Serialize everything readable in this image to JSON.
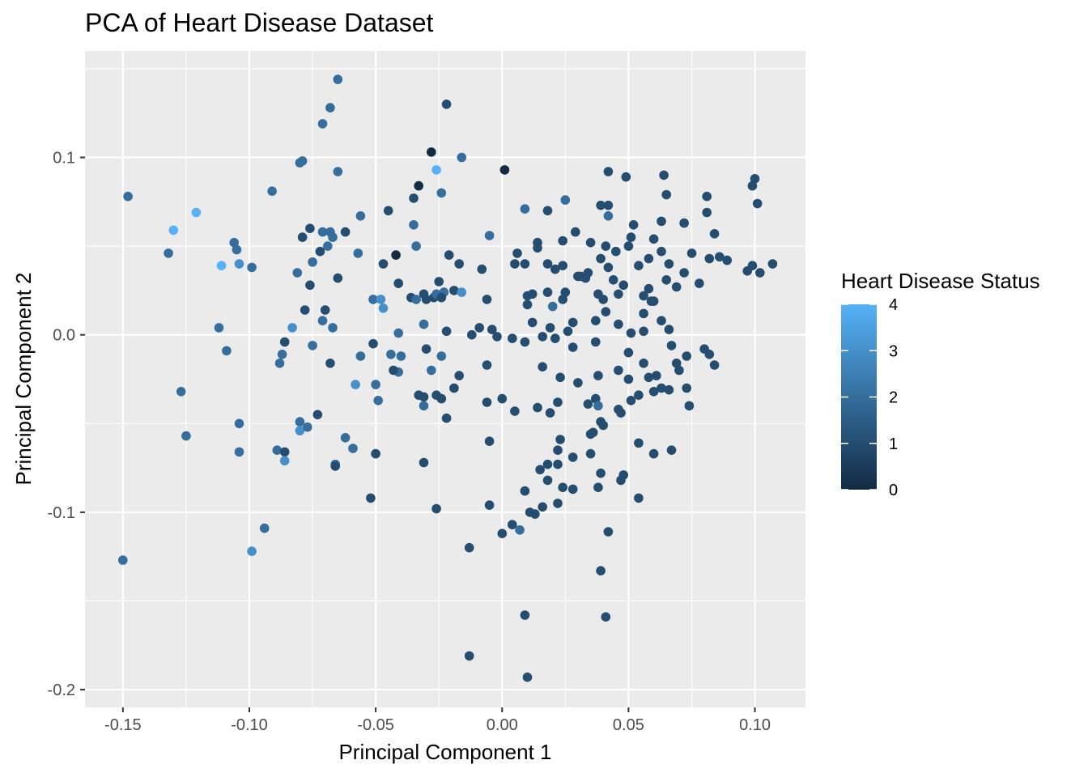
{
  "chart_data": {
    "type": "scatter",
    "title": "PCA of Heart Disease Dataset",
    "xlabel": "Principal Component 1",
    "ylabel": "Principal Component 2",
    "xlim": [
      -0.165,
      0.12
    ],
    "ylim": [
      -0.21,
      0.16
    ],
    "x_ticks": [
      -0.15,
      -0.1,
      -0.05,
      0.0,
      0.05,
      0.1
    ],
    "x_tick_labels": [
      "-0.15",
      "-0.10",
      "-0.05",
      "0.00",
      "0.05",
      "0.10"
    ],
    "y_ticks": [
      -0.2,
      -0.1,
      0.0,
      0.1
    ],
    "y_tick_labels": [
      "-0.2",
      "-0.1",
      "0.0",
      "0.1"
    ],
    "grid": true,
    "legend": {
      "title": "Heart Disease Status",
      "position": "right",
      "min": 0,
      "max": 4,
      "ticks": [
        "0",
        "1",
        "2",
        "3",
        "4"
      ],
      "color_low": "#132B43",
      "color_high": "#56B1F7"
    },
    "colors": {
      "panel": "#EBEBEB",
      "grid": "#FFFFFF"
    },
    "points": [
      [
        -0.065,
        0.144,
        2
      ],
      [
        -0.022,
        0.13,
        1
      ],
      [
        -0.068,
        0.128,
        2
      ],
      [
        -0.071,
        0.119,
        2
      ],
      [
        -0.028,
        0.103,
        0
      ],
      [
        -0.016,
        0.1,
        2
      ],
      [
        -0.079,
        0.098,
        2
      ],
      [
        -0.08,
        0.097,
        2
      ],
      [
        -0.065,
        0.092,
        2
      ],
      [
        -0.026,
        0.093,
        4
      ],
      [
        0.001,
        0.093,
        0
      ],
      [
        -0.148,
        0.078,
        2
      ],
      [
        -0.091,
        0.081,
        2
      ],
      [
        -0.024,
        0.08,
        2
      ],
      [
        -0.033,
        0.084,
        0
      ],
      [
        -0.121,
        0.069,
        4
      ],
      [
        -0.13,
        0.059,
        4
      ],
      [
        -0.132,
        0.046,
        2
      ],
      [
        -0.106,
        0.052,
        2
      ],
      [
        -0.105,
        0.048,
        2
      ],
      [
        -0.111,
        0.039,
        4
      ],
      [
        -0.104,
        0.04,
        3
      ],
      [
        -0.099,
        0.038,
        2
      ],
      [
        -0.056,
        0.067,
        2
      ],
      [
        -0.045,
        0.07,
        1
      ],
      [
        -0.035,
        0.077,
        1
      ],
      [
        -0.035,
        0.062,
        2
      ],
      [
        -0.076,
        0.06,
        1
      ],
      [
        -0.079,
        0.055,
        1
      ],
      [
        -0.068,
        0.058,
        2
      ],
      [
        -0.067,
        0.055,
        2
      ],
      [
        -0.069,
        0.05,
        2
      ],
      [
        -0.071,
        0.058,
        2
      ],
      [
        -0.062,
        0.058,
        1
      ],
      [
        -0.072,
        0.047,
        1
      ],
      [
        -0.075,
        0.041,
        2
      ],
      [
        -0.081,
        0.035,
        2
      ],
      [
        -0.065,
        0.032,
        1
      ],
      [
        -0.057,
        0.046,
        2
      ],
      [
        -0.034,
        0.05,
        2
      ],
      [
        -0.042,
        0.045,
        0
      ],
      [
        -0.047,
        0.04,
        1
      ],
      [
        -0.041,
        0.029,
        1
      ],
      [
        -0.021,
        0.045,
        1
      ],
      [
        -0.025,
        0.03,
        1
      ],
      [
        -0.076,
        0.028,
        1
      ],
      [
        -0.078,
        0.014,
        1
      ],
      [
        -0.07,
        0.014,
        1
      ],
      [
        -0.071,
        0.008,
        2
      ],
      [
        -0.083,
        0.004,
        3
      ],
      [
        -0.067,
        0.004,
        2
      ],
      [
        -0.112,
        0.004,
        2
      ],
      [
        -0.109,
        -0.009,
        2
      ],
      [
        -0.086,
        -0.004,
        1
      ],
      [
        -0.087,
        -0.011,
        2
      ],
      [
        -0.075,
        -0.006,
        2
      ],
      [
        -0.088,
        -0.016,
        2
      ],
      [
        -0.068,
        -0.016,
        1
      ],
      [
        -0.051,
        0.02,
        2
      ],
      [
        -0.048,
        0.02,
        3
      ],
      [
        -0.047,
        0.015,
        3
      ],
      [
        -0.051,
        -0.005,
        1
      ],
      [
        -0.056,
        -0.012,
        2
      ],
      [
        -0.044,
        -0.011,
        2
      ],
      [
        -0.04,
        -0.012,
        2
      ],
      [
        -0.041,
        0.001,
        2
      ],
      [
        -0.036,
        0.021,
        1
      ],
      [
        -0.031,
        0.023,
        1
      ],
      [
        -0.034,
        0.02,
        2
      ],
      [
        -0.03,
        0.02,
        1
      ],
      [
        -0.031,
        0.006,
        2
      ],
      [
        -0.027,
        0.021,
        1
      ],
      [
        -0.026,
        0.023,
        2
      ],
      [
        -0.023,
        0.024,
        2
      ],
      [
        -0.019,
        0.025,
        1
      ],
      [
        -0.024,
        0.021,
        1
      ],
      [
        -0.016,
        0.024,
        3
      ],
      [
        -0.022,
        0.002,
        1
      ],
      [
        -0.03,
        -0.008,
        1
      ],
      [
        -0.024,
        -0.012,
        2
      ],
      [
        -0.041,
        -0.021,
        2
      ],
      [
        -0.043,
        -0.02,
        1
      ],
      [
        -0.028,
        -0.02,
        2
      ],
      [
        -0.017,
        -0.023,
        1
      ],
      [
        -0.058,
        -0.028,
        3
      ],
      [
        -0.05,
        -0.028,
        2
      ],
      [
        -0.049,
        -0.037,
        2
      ],
      [
        -0.033,
        -0.034,
        1
      ],
      [
        -0.031,
        -0.035,
        1
      ],
      [
        -0.031,
        -0.04,
        2
      ],
      [
        -0.026,
        -0.034,
        1
      ],
      [
        -0.024,
        -0.036,
        1
      ],
      [
        -0.022,
        -0.047,
        1
      ],
      [
        -0.019,
        -0.03,
        1
      ],
      [
        -0.073,
        -0.045,
        1
      ],
      [
        -0.08,
        -0.049,
        2
      ],
      [
        -0.08,
        -0.054,
        3
      ],
      [
        -0.077,
        -0.052,
        2
      ],
      [
        -0.089,
        -0.065,
        2
      ],
      [
        -0.086,
        -0.066,
        1
      ],
      [
        -0.086,
        -0.071,
        3
      ],
      [
        -0.066,
        -0.073,
        2
      ],
      [
        -0.066,
        -0.074,
        1
      ],
      [
        -0.062,
        -0.058,
        2
      ],
      [
        -0.059,
        -0.064,
        2
      ],
      [
        -0.05,
        -0.067,
        1
      ],
      [
        -0.031,
        -0.072,
        1
      ],
      [
        -0.104,
        -0.05,
        2
      ],
      [
        -0.104,
        -0.066,
        2
      ],
      [
        -0.125,
        -0.057,
        2
      ],
      [
        -0.127,
        -0.032,
        2
      ],
      [
        -0.094,
        -0.109,
        2
      ],
      [
        -0.099,
        -0.122,
        3
      ],
      [
        -0.15,
        -0.127,
        2
      ],
      [
        -0.052,
        -0.092,
        1
      ],
      [
        -0.026,
        -0.098,
        1
      ],
      [
        -0.013,
        -0.12,
        1
      ],
      [
        -0.013,
        -0.181,
        1
      ],
      [
        0.009,
        -0.158,
        1
      ],
      [
        0.01,
        -0.193,
        1
      ],
      [
        0.041,
        -0.159,
        1
      ],
      [
        0.039,
        -0.133,
        1
      ],
      [
        0.042,
        -0.111,
        1
      ],
      [
        -0.005,
        -0.096,
        1
      ],
      [
        0.0,
        -0.112,
        1
      ],
      [
        0.004,
        -0.107,
        1
      ],
      [
        0.007,
        -0.11,
        2
      ],
      [
        0.011,
        -0.1,
        1
      ],
      [
        0.013,
        -0.101,
        1
      ],
      [
        0.016,
        -0.097,
        1
      ],
      [
        0.009,
        -0.088,
        1
      ],
      [
        -0.005,
        -0.06,
        1
      ],
      [
        0.015,
        -0.076,
        1
      ],
      [
        0.018,
        -0.073,
        1
      ],
      [
        0.022,
        -0.073,
        1
      ],
      [
        0.018,
        -0.082,
        1
      ],
      [
        0.024,
        -0.086,
        1
      ],
      [
        0.022,
        -0.095,
        1
      ],
      [
        0.028,
        -0.087,
        1
      ],
      [
        0.022,
        -0.065,
        1
      ],
      [
        0.023,
        -0.059,
        1
      ],
      [
        0.028,
        -0.069,
        1
      ],
      [
        0.035,
        -0.067,
        1
      ],
      [
        0.038,
        -0.086,
        1
      ],
      [
        0.039,
        -0.078,
        1
      ],
      [
        0.047,
        -0.082,
        1
      ],
      [
        0.048,
        -0.079,
        1
      ],
      [
        0.054,
        -0.092,
        1
      ],
      [
        0.035,
        -0.056,
        1
      ],
      [
        0.036,
        -0.055,
        1
      ],
      [
        0.039,
        -0.049,
        1
      ],
      [
        0.04,
        -0.051,
        1
      ],
      [
        0.054,
        -0.061,
        1
      ],
      [
        0.06,
        -0.067,
        1
      ],
      [
        0.067,
        -0.065,
        1
      ],
      [
        -0.006,
        -0.038,
        1
      ],
      [
        0.0,
        -0.036,
        1
      ],
      [
        0.005,
        -0.043,
        1
      ],
      [
        0.014,
        -0.041,
        1
      ],
      [
        0.019,
        -0.044,
        1
      ],
      [
        0.022,
        -0.038,
        1
      ],
      [
        0.034,
        -0.039,
        1
      ],
      [
        0.037,
        -0.036,
        1
      ],
      [
        0.038,
        -0.04,
        2
      ],
      [
        0.046,
        -0.042,
        1
      ],
      [
        0.047,
        -0.044,
        1
      ],
      [
        0.051,
        -0.037,
        1
      ],
      [
        0.054,
        -0.034,
        1
      ],
      [
        0.06,
        -0.032,
        1
      ],
      [
        0.063,
        -0.03,
        1
      ],
      [
        0.066,
        -0.031,
        1
      ],
      [
        0.073,
        -0.03,
        1
      ],
      [
        0.074,
        -0.04,
        1
      ],
      [
        -0.006,
        -0.017,
        1
      ],
      [
        0.016,
        -0.018,
        1
      ],
      [
        0.023,
        -0.024,
        1
      ],
      [
        0.03,
        -0.027,
        1
      ],
      [
        0.038,
        -0.023,
        1
      ],
      [
        0.046,
        -0.02,
        1
      ],
      [
        0.05,
        -0.025,
        1
      ],
      [
        0.058,
        -0.024,
        1
      ],
      [
        0.061,
        -0.023,
        1
      ],
      [
        0.07,
        -0.02,
        1
      ],
      [
        0.056,
        0.002,
        1
      ],
      [
        0.05,
        -0.01,
        1
      ],
      [
        0.056,
        -0.016,
        1
      ],
      [
        0.069,
        -0.016,
        1
      ],
      [
        0.073,
        -0.012,
        1
      ],
      [
        0.08,
        -0.008,
        1
      ],
      [
        0.082,
        -0.011,
        1
      ],
      [
        0.084,
        -0.017,
        1
      ],
      [
        -0.012,
        0.0,
        1
      ],
      [
        -0.009,
        0.004,
        1
      ],
      [
        -0.004,
        0.003,
        1
      ],
      [
        -0.002,
        -0.001,
        1
      ],
      [
        0.004,
        -0.002,
        1
      ],
      [
        0.009,
        -0.004,
        1
      ],
      [
        0.012,
        0.007,
        1
      ],
      [
        0.016,
        -0.001,
        1
      ],
      [
        0.019,
        0.004,
        1
      ],
      [
        0.021,
        -0.002,
        1
      ],
      [
        0.026,
        0.002,
        1
      ],
      [
        0.028,
        0.007,
        1
      ],
      [
        0.028,
        -0.007,
        1
      ],
      [
        0.037,
        0.008,
        1
      ],
      [
        0.037,
        -0.004,
        1
      ],
      [
        0.041,
        0.013,
        1
      ],
      [
        0.046,
        0.006,
        1
      ],
      [
        0.051,
        0.001,
        1
      ],
      [
        0.056,
        0.012,
        1
      ],
      [
        0.059,
        0.019,
        1
      ],
      [
        0.063,
        0.008,
        1
      ],
      [
        0.066,
        0.003,
        1
      ],
      [
        0.067,
        -0.006,
        1
      ],
      [
        -0.006,
        0.02,
        1
      ],
      [
        0.01,
        0.022,
        1
      ],
      [
        0.01,
        0.017,
        1
      ],
      [
        0.018,
        0.024,
        1
      ],
      [
        0.02,
        0.016,
        2
      ],
      [
        0.025,
        0.024,
        1
      ],
      [
        0.031,
        0.033,
        1
      ],
      [
        0.038,
        0.023,
        1
      ],
      [
        0.04,
        0.02,
        1
      ],
      [
        0.046,
        0.023,
        1
      ],
      [
        0.048,
        0.028,
        1
      ],
      [
        0.056,
        0.022,
        1
      ],
      [
        0.058,
        0.026,
        1
      ],
      [
        0.06,
        0.019,
        1
      ],
      [
        0.065,
        0.031,
        1
      ],
      [
        0.072,
        0.035,
        1
      ],
      [
        0.078,
        0.029,
        1
      ],
      [
        -0.017,
        0.04,
        1
      ],
      [
        -0.008,
        0.037,
        1
      ],
      [
        0.005,
        0.04,
        1
      ],
      [
        0.009,
        0.04,
        1
      ],
      [
        0.014,
        0.049,
        1
      ],
      [
        0.018,
        0.04,
        1
      ],
      [
        0.021,
        0.037,
        1
      ],
      [
        0.024,
        0.039,
        1
      ],
      [
        0.03,
        0.033,
        1
      ],
      [
        0.034,
        0.035,
        1
      ],
      [
        0.039,
        0.043,
        1
      ],
      [
        0.042,
        0.038,
        1
      ],
      [
        0.05,
        0.05,
        1
      ],
      [
        0.054,
        0.039,
        1
      ],
      [
        0.058,
        0.043,
        1
      ],
      [
        0.063,
        0.047,
        1
      ],
      [
        0.066,
        0.04,
        1
      ],
      [
        0.075,
        0.046,
        1
      ],
      [
        0.082,
        0.043,
        1
      ],
      [
        0.086,
        0.044,
        1
      ],
      [
        0.089,
        0.042,
        1
      ],
      [
        0.097,
        0.036,
        1
      ],
      [
        0.099,
        0.039,
        1
      ],
      [
        0.102,
        0.035,
        1
      ],
      [
        0.107,
        0.04,
        1
      ],
      [
        0.006,
        0.046,
        1
      ],
      [
        0.014,
        0.052,
        1
      ],
      [
        0.024,
        0.053,
        1
      ],
      [
        0.029,
        0.058,
        1
      ],
      [
        0.035,
        0.052,
        1
      ],
      [
        0.041,
        0.05,
        1
      ],
      [
        0.045,
        0.047,
        1
      ],
      [
        0.051,
        0.055,
        1
      ],
      [
        0.06,
        0.054,
        1
      ],
      [
        0.063,
        0.064,
        1
      ],
      [
        0.072,
        0.063,
        1
      ],
      [
        0.081,
        0.069,
        1
      ],
      [
        0.084,
        0.057,
        1
      ],
      [
        -0.005,
        0.056,
        2
      ],
      [
        0.009,
        0.071,
        2
      ],
      [
        0.018,
        0.07,
        1
      ],
      [
        0.025,
        0.076,
        2
      ],
      [
        0.039,
        0.073,
        1
      ],
      [
        0.042,
        0.073,
        1
      ],
      [
        0.042,
        0.067,
        2
      ],
      [
        0.052,
        0.062,
        1
      ],
      [
        0.065,
        0.079,
        1
      ],
      [
        0.081,
        0.078,
        1
      ],
      [
        0.099,
        0.084,
        1
      ],
      [
        0.1,
        0.088,
        1
      ],
      [
        0.101,
        0.074,
        1
      ],
      [
        0.042,
        0.092,
        1
      ],
      [
        0.049,
        0.089,
        1
      ],
      [
        0.064,
        0.09,
        1
      ],
      [
        0.033,
        0.032,
        1
      ],
      [
        0.024,
        0.02,
        1
      ],
      [
        0.012,
        0.023,
        1
      ],
      [
        0.044,
        0.031,
        1
      ],
      [
        0.069,
        0.027,
        1
      ]
    ]
  }
}
